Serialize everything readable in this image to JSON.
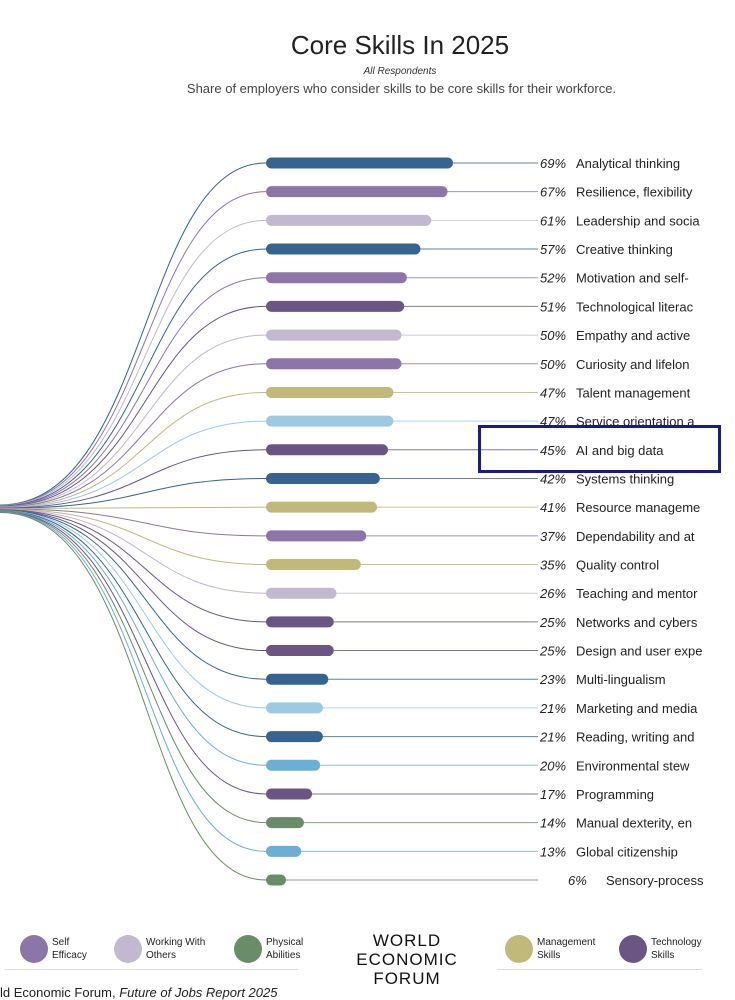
{
  "chart_data": {
    "type": "bar",
    "title": "Core Skills In 2025",
    "subtitle": "All Respondents",
    "description": "Share of employers who consider skills to be core skills for their workforce.",
    "unit": "%",
    "xlim": [
      0,
      100
    ],
    "skills": [
      {
        "label": "Analytical thinking",
        "value": 69,
        "color": "#36638f"
      },
      {
        "label": "Resilience, flexibility",
        "value": 67,
        "color": "#8c76a8"
      },
      {
        "label": "Leadership and socia",
        "value": 61,
        "color": "#c2b8cf"
      },
      {
        "label": "Creative thinking",
        "value": 57,
        "color": "#36638f"
      },
      {
        "label": "Motivation and self-",
        "value": 52,
        "color": "#8c76a8"
      },
      {
        "label": "Technological literac",
        "value": 51,
        "color": "#6a5583"
      },
      {
        "label": "Empathy and active",
        "value": 50,
        "color": "#c2b8cf"
      },
      {
        "label": "Curiosity and lifelon",
        "value": 50,
        "color": "#8c76a8"
      },
      {
        "label": "Talent management",
        "value": 47,
        "color": "#c0b97a"
      },
      {
        "label": "Service orientation a",
        "value": 47,
        "color": "#9ec9e2"
      },
      {
        "label": "AI and big data",
        "value": 45,
        "color": "#6a5583"
      },
      {
        "label": "Systems thinking",
        "value": 42,
        "color": "#36638f"
      },
      {
        "label": "Resource manageme",
        "value": 41,
        "color": "#c0b97a"
      },
      {
        "label": "Dependability and at",
        "value": 37,
        "color": "#8c76a8"
      },
      {
        "label": "Quality control",
        "value": 35,
        "color": "#c0b97a"
      },
      {
        "label": "Teaching and mentor",
        "value": 26,
        "color": "#c2b8cf"
      },
      {
        "label": "Networks and cybers",
        "value": 25,
        "color": "#6a5583"
      },
      {
        "label": "Design and user expe",
        "value": 25,
        "color": "#6a5583"
      },
      {
        "label": "Multi-lingualism",
        "value": 23,
        "color": "#36638f"
      },
      {
        "label": "Marketing and media",
        "value": 21,
        "color": "#9ec9e2"
      },
      {
        "label": "Reading, writing and",
        "value": 21,
        "color": "#36638f"
      },
      {
        "label": "Environmental stew",
        "value": 20,
        "color": "#6baed6"
      },
      {
        "label": "Programming",
        "value": 17,
        "color": "#6a5583"
      },
      {
        "label": "Manual dexterity, en",
        "value": 14,
        "color": "#6a8c69"
      },
      {
        "label": "Global citizenship",
        "value": 13,
        "color": "#6baed6"
      },
      {
        "label": "Sensory-processing al",
        "value": 6,
        "color": "#6a8c69"
      }
    ],
    "highlighted": "AI and big data",
    "highlight_color": "#1c1a86"
  },
  "legend": [
    {
      "label": "Self Efficacy",
      "color": "#8c76a8"
    },
    {
      "label": "Working With Others",
      "color": "#c2b8cf"
    },
    {
      "label": "Physical Abilities",
      "color": "#6a8c69"
    },
    {
      "label": "Management Skills",
      "color": "#c0b97a"
    },
    {
      "label": "Technology Skills",
      "color": "#6a5583"
    }
  ],
  "logo": {
    "line1": "WORLD",
    "line2": "ECONOMIC",
    "line3": "FORUM"
  },
  "footer": {
    "source": "ld Economic Forum, ",
    "report": "Future of Jobs Report 2025"
  }
}
